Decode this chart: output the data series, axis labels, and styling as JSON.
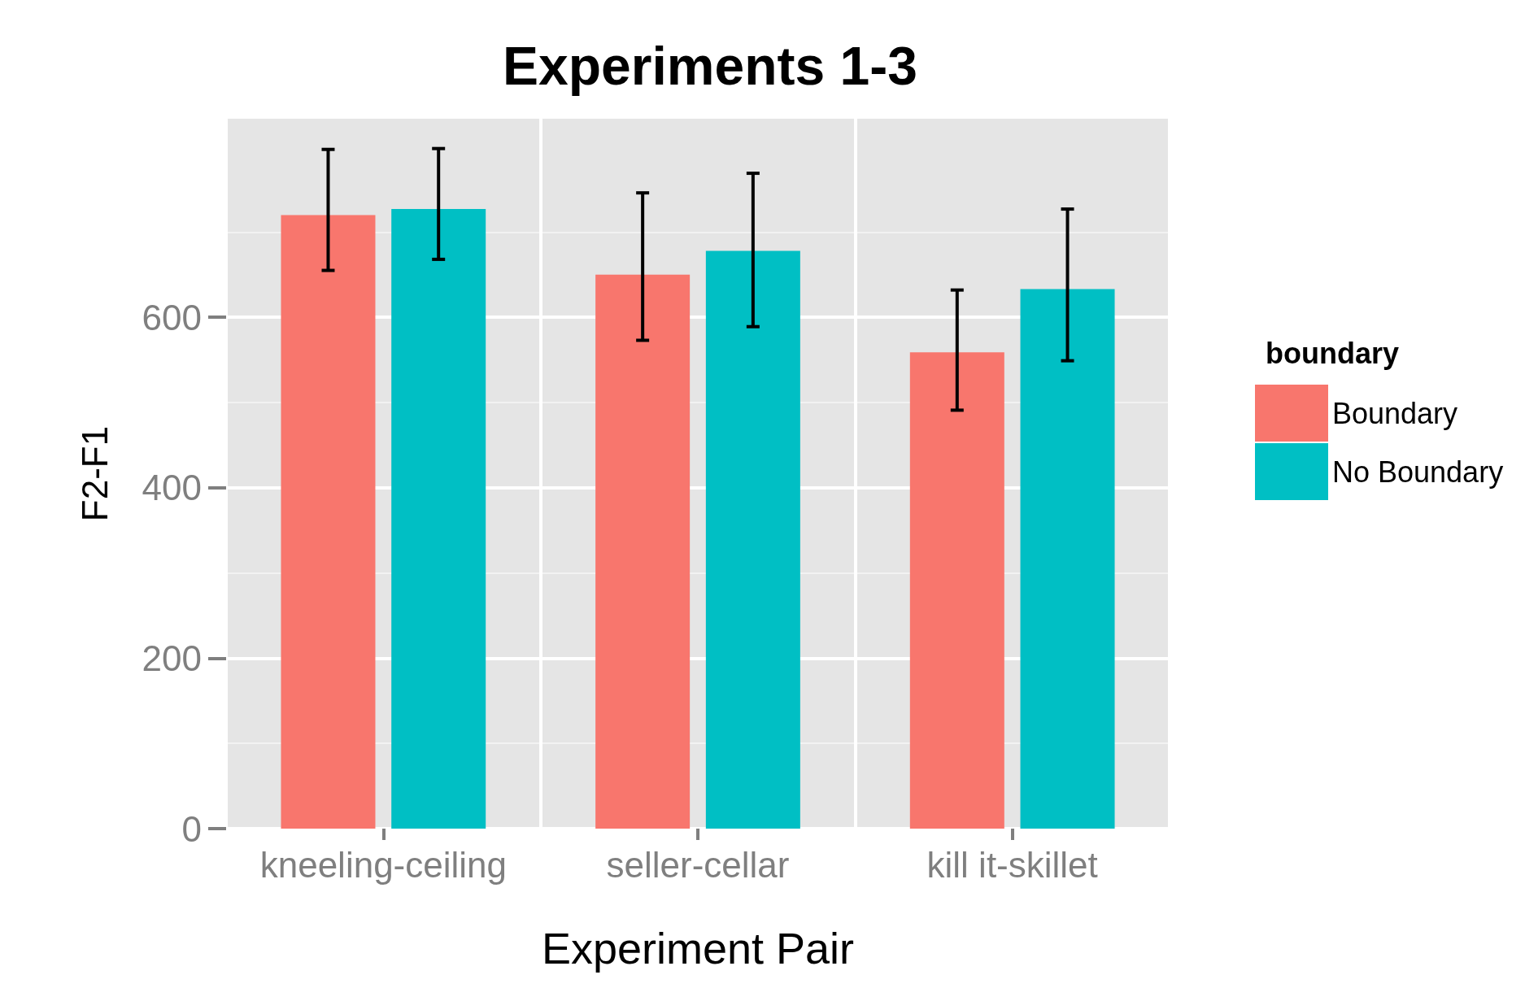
{
  "chart_data": {
    "type": "bar",
    "title": "Experiments 1-3",
    "xlabel": "Experiment Pair",
    "ylabel": "F2-F1",
    "legend_title": "boundary",
    "categories": [
      "kneeling-ceiling",
      "seller-cellar",
      "kill it-skillet"
    ],
    "series": [
      {
        "name": "Boundary",
        "color": "#f8766d",
        "values": [
          720,
          650,
          559
        ],
        "errors": [
          [
            655,
            797
          ],
          [
            573,
            746
          ],
          [
            491,
            632
          ]
        ]
      },
      {
        "name": "No Boundary",
        "color": "#00bfc4",
        "values": [
          727,
          678,
          633
        ],
        "errors": [
          [
            668,
            798
          ],
          [
            589,
            769
          ],
          [
            549,
            727
          ]
        ]
      }
    ],
    "ylim": [
      0,
      833
    ],
    "yticks": [
      0,
      200,
      400,
      600
    ],
    "grid": true,
    "legend": "right"
  }
}
